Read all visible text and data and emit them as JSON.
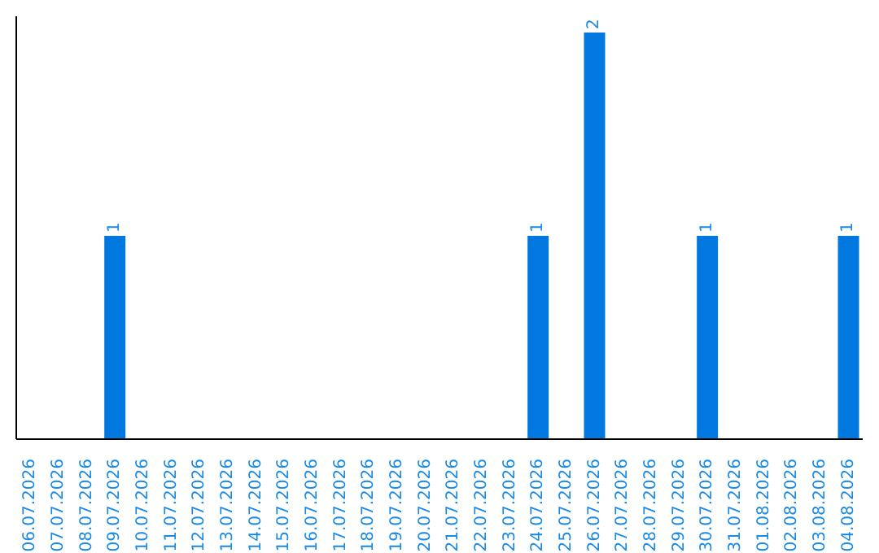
{
  "chart_data": {
    "type": "bar",
    "categories": [
      "06.07.2026",
      "07.07.2026",
      "08.07.2026",
      "09.07.2026",
      "10.07.2026",
      "11.07.2026",
      "12.07.2026",
      "13.07.2026",
      "14.07.2026",
      "15.07.2026",
      "16.07.2026",
      "17.07.2026",
      "18.07.2026",
      "19.07.2026",
      "20.07.2026",
      "21.07.2026",
      "22.07.2026",
      "23.07.2026",
      "24.07.2026",
      "25.07.2026",
      "26.07.2026",
      "27.07.2026",
      "28.07.2026",
      "29.07.2026",
      "30.07.2026",
      "31.07.2026",
      "01.08.2026",
      "02.08.2026",
      "03.08.2026",
      "04.08.2026"
    ],
    "values": [
      0,
      0,
      0,
      1,
      0,
      0,
      0,
      0,
      0,
      0,
      0,
      0,
      0,
      0,
      0,
      0,
      0,
      0,
      1,
      0,
      2,
      0,
      0,
      0,
      1,
      0,
      0,
      0,
      0,
      1
    ],
    "value_labels": [
      null,
      null,
      null,
      "1",
      null,
      null,
      null,
      null,
      null,
      null,
      null,
      null,
      null,
      null,
      null,
      null,
      null,
      null,
      "1",
      null,
      "2",
      null,
      null,
      null,
      "1",
      null,
      null,
      null,
      null,
      "1"
    ],
    "color": "#0078e0",
    "grid": false,
    "legend": false
  }
}
